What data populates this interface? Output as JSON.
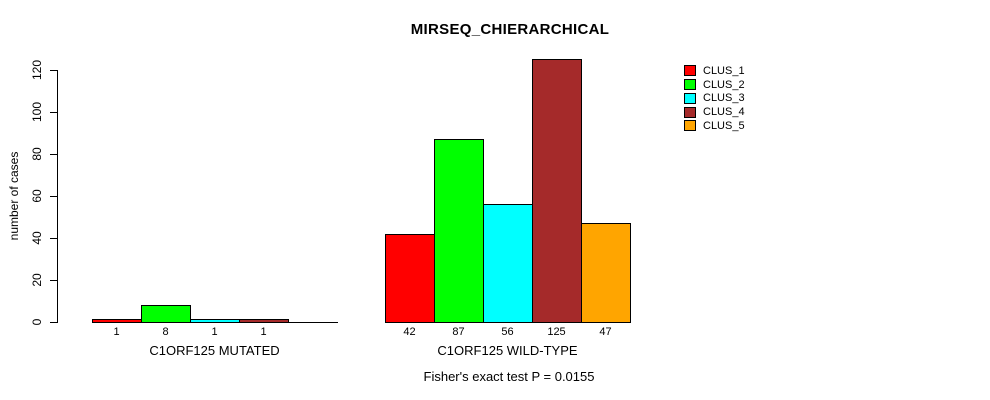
{
  "figure": {
    "title": "MIRSEQ_CHIERARCHICAL",
    "footer": "Fisher's exact test P = 0.0155"
  },
  "chart_data": {
    "type": "bar",
    "title": "MIRSEQ_CHIERARCHICAL",
    "ylabel": "number of cases",
    "xlabel": "",
    "ylim": [
      0,
      120
    ],
    "yticks": [
      0,
      20,
      40,
      60,
      80,
      100,
      120
    ],
    "grid": false,
    "legend_position": "right",
    "legend": [
      {
        "label": "CLUS_1",
        "color": "#FF0000"
      },
      {
        "label": "CLUS_2",
        "color": "#00FF00"
      },
      {
        "label": "CLUS_3",
        "color": "#00FFFF"
      },
      {
        "label": "CLUS_4",
        "color": "#A52A2A"
      },
      {
        "label": "CLUS_5",
        "color": "#FFA500"
      }
    ],
    "groups": [
      {
        "label": "C1ORF125 MUTATED",
        "categories": [
          "CLUS_1",
          "CLUS_2",
          "CLUS_3",
          "CLUS_4"
        ],
        "values": [
          1,
          8,
          1,
          1
        ],
        "bar_labels": [
          "1",
          "8",
          "1",
          "1"
        ],
        "colors": [
          "#FF0000",
          "#00FF00",
          "#00FFFF",
          "#A52A2A"
        ],
        "slots": 5
      },
      {
        "label": "C1ORF125 WILD-TYPE",
        "categories": [
          "CLUS_1",
          "CLUS_2",
          "CLUS_3",
          "CLUS_4",
          "CLUS_5"
        ],
        "values": [
          42,
          87,
          56,
          125,
          47
        ],
        "bar_labels": [
          "42",
          "87",
          "56",
          "125",
          "47"
        ],
        "colors": [
          "#FF0000",
          "#00FF00",
          "#00FFFF",
          "#A52A2A",
          "#FFA500"
        ],
        "slots": 5
      }
    ],
    "annotation": "Fisher's exact test P = 0.0155"
  }
}
